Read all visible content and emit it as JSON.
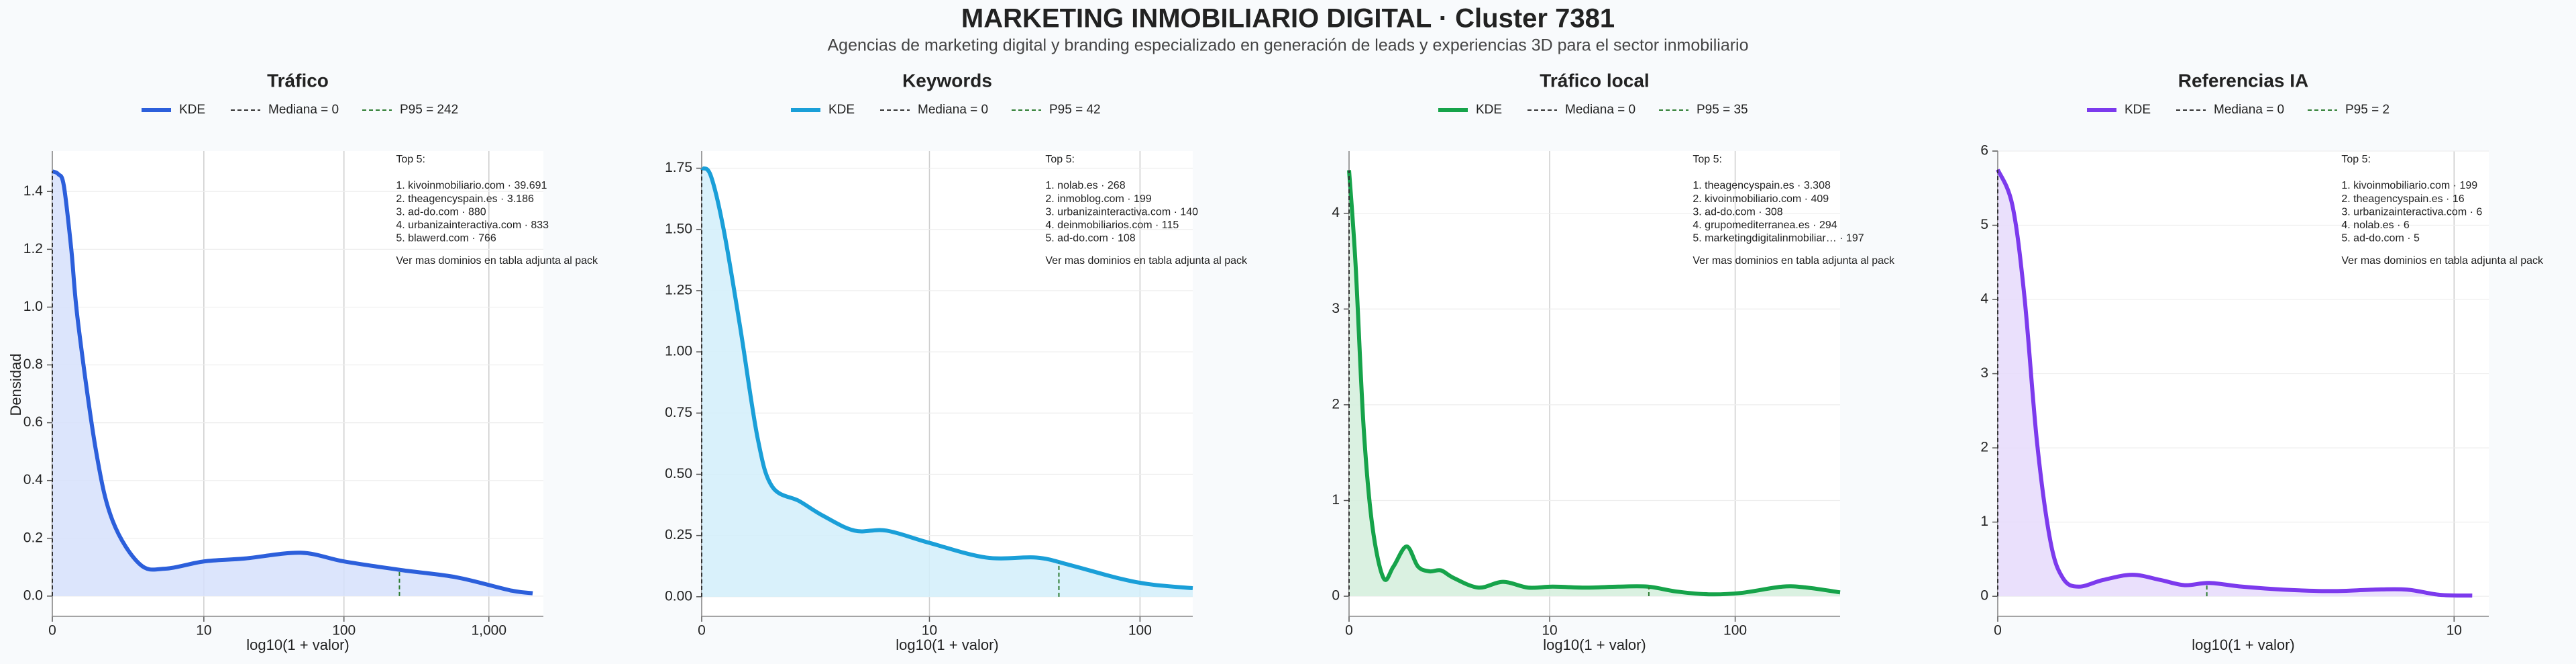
{
  "title": "MARKETING INMOBILIARIO DIGITAL · Cluster 7381",
  "subtitle": "Agencias de marketing digital y branding especializado en generación de leads y experiencias 3D para el sector inmobiliario",
  "chart_data": [
    {
      "type": "line",
      "title": "Tráfico",
      "xlabel": "log10(1 + valor)",
      "ylabel": "Densidad",
      "xscale": "log1p",
      "xlim": [
        0,
        2370
      ],
      "xticks": [
        0,
        10,
        100,
        {
          "value": 1000,
          "label": "1,000"
        }
      ],
      "ylim": [
        -0.07,
        1.54
      ],
      "yticks": [
        {
          "value": 0,
          "label": "0.0"
        },
        0.2,
        0.4,
        0.6,
        0.8,
        {
          "value": 1,
          "label": "1.0"
        },
        1.2,
        1.4
      ],
      "grid": true,
      "series": [
        {
          "name": "KDE",
          "color": "#2c5fdb",
          "fill": "#d6e1fb",
          "x": [
            0,
            0.1,
            0.2,
            0.35,
            0.5,
            1,
            1.6,
            3,
            5,
            10,
            20,
            50,
            100,
            250,
            600,
            1400,
            2000
          ],
          "values": [
            1.47,
            1.46,
            1.42,
            1.2,
            0.95,
            0.5,
            0.26,
            0.11,
            0.095,
            0.12,
            0.13,
            0.15,
            0.12,
            0.09,
            0.065,
            0.02,
            0.01
          ]
        }
      ],
      "reference_lines": [
        {
          "name": "Mediana = 0",
          "value": 0,
          "color": "#333333"
        },
        {
          "name": "P95 = 242",
          "value": 242,
          "color": "#2e7d32"
        }
      ],
      "annotation": {
        "title": "Top 5:",
        "lines": [
          "1. kivoinmobiliario.com · 39.691",
          "2. theagencyspain.es · 3.186",
          "3. ad-do.com · 880",
          "4. urbanizainteractiva.com · 833",
          "5. blawerd.com · 766"
        ],
        "footer": "Ver mas dominios en tabla adjunta al pack"
      }
    },
    {
      "type": "line",
      "title": "Keywords",
      "xlabel": "log10(1 + valor)",
      "xscale": "log1p",
      "xlim": [
        0,
        175
      ],
      "xticks": [
        0,
        10,
        100
      ],
      "ylim": [
        -0.08,
        1.82
      ],
      "yticks": [
        {
          "value": 0,
          "label": "0.00"
        },
        0.25,
        {
          "value": 0.5,
          "label": "0.50"
        },
        0.75,
        {
          "value": 1,
          "label": "1.00"
        },
        1.25,
        {
          "value": 1.5,
          "label": "1.50"
        },
        1.75
      ],
      "grid": true,
      "series": [
        {
          "name": "KDE",
          "color": "#1a9fd8",
          "fill": "#d2eefa",
          "x": [
            0,
            0.1,
            0.26,
            0.5,
            0.8,
            1.1,
            1.8,
            2.6,
            4,
            6,
            10,
            19,
            33,
            47,
            80,
            113,
            175
          ],
          "values": [
            1.75,
            1.72,
            1.5,
            1.1,
            0.65,
            0.45,
            0.39,
            0.33,
            0.27,
            0.27,
            0.22,
            0.16,
            0.16,
            0.13,
            0.075,
            0.05,
            0.035
          ]
        }
      ],
      "reference_lines": [
        {
          "name": "Mediana = 0",
          "value": 0,
          "color": "#333333"
        },
        {
          "name": "P95 = 42",
          "value": 42,
          "color": "#2e7d32"
        }
      ],
      "annotation": {
        "title": "Top 5:",
        "lines": [
          "1. nolab.es · 268",
          "2. inmoblog.com · 199",
          "3. urbanizainteractiva.com · 140",
          "4. deinmobiliarios.com · 115",
          "5. ad-do.com · 108"
        ],
        "footer": "Ver mas dominios en tabla adjunta al pack"
      }
    },
    {
      "type": "line",
      "title": "Tráfico local",
      "xlabel": "log10(1 + valor)",
      "xscale": "log1p",
      "xlim": [
        0,
        353
      ],
      "xticks": [
        0,
        10,
        100
      ],
      "ylim": [
        -0.21,
        4.65
      ],
      "yticks": [
        0,
        1,
        2,
        3,
        4
      ],
      "grid": true,
      "series": [
        {
          "name": "KDE",
          "color": "#16a34a",
          "fill": "#d4efdc",
          "x": [
            0,
            0.08,
            0.19,
            0.32,
            0.51,
            0.7,
            0.99,
            1.28,
            1.62,
            2,
            2.5,
            3.7,
            5.3,
            7.5,
            10.4,
            15.9,
            24,
            34.6,
            48.7,
            72.6,
            108,
            177,
            238,
            353
          ],
          "values": [
            4.45,
            3.48,
            1.77,
            0.74,
            0.19,
            0.31,
            0.52,
            0.31,
            0.26,
            0.27,
            0.19,
            0.09,
            0.15,
            0.09,
            0.1,
            0.09,
            0.1,
            0.1,
            0.05,
            0.02,
            0.035,
            0.1,
            0.09,
            0.04
          ]
        }
      ],
      "reference_lines": [
        {
          "name": "Mediana = 0",
          "value": 0,
          "color": "#333333"
        },
        {
          "name": "P95 = 35",
          "value": 35,
          "color": "#2e7d32"
        }
      ],
      "annotation": {
        "title": "Top 5:",
        "lines": [
          "1. theagencyspain.es · 3.308",
          "2. kivoinmobiliario.com · 409",
          "3. ad-do.com · 308",
          "4. grupomediterranea.es · 294",
          "5. marketingdigitalinmobiliar… · 197"
        ],
        "footer": "Ver mas dominios en tabla adjunta al pack"
      }
    },
    {
      "type": "line",
      "title": "Referencias IA",
      "xlabel": "log10(1 + valor)",
      "xscale": "log1p",
      "xlim": [
        0,
        12.2
      ],
      "xticks": [
        0,
        10
      ],
      "ylim": [
        -0.27,
        6.0
      ],
      "yticks": [
        0,
        1,
        2,
        3,
        4,
        5,
        6
      ],
      "grid": true,
      "series": [
        {
          "name": "KDE",
          "color": "#7c3aed",
          "fill": "#e6dbfb",
          "x": [
            0,
            0.08,
            0.15,
            0.23,
            0.32,
            0.41,
            0.53,
            0.74,
            1.03,
            1.35,
            1.67,
            2.04,
            2.61,
            3.49,
            4.81,
            6.2,
            7.6,
            9.2,
            11.1
          ],
          "values": [
            5.75,
            5.27,
            4.05,
            2.06,
            0.73,
            0.24,
            0.13,
            0.22,
            0.29,
            0.22,
            0.15,
            0.18,
            0.13,
            0.09,
            0.07,
            0.09,
            0.09,
            0.02,
            0.01
          ]
        }
      ],
      "reference_lines": [
        {
          "name": "Mediana = 0",
          "value": 0,
          "color": "#333333"
        },
        {
          "name": "P95 = 2",
          "value": 2,
          "color": "#2e7d32"
        }
      ],
      "annotation": {
        "title": "Top 5:",
        "lines": [
          "1. kivoinmobiliario.com · 199",
          "2. theagencyspain.es · 16",
          "3. urbanizainteractiva.com · 6",
          "4. nolab.es · 6",
          "5. ad-do.com · 5"
        ],
        "footer": "Ver mas dominios en tabla adjunta al pack"
      }
    }
  ]
}
